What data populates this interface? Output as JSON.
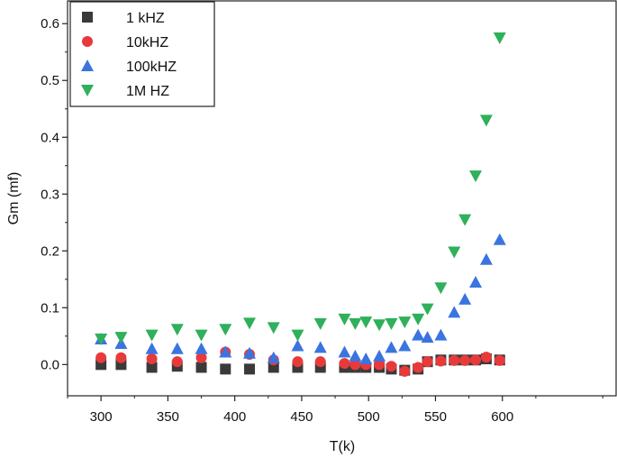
{
  "chart_data": {
    "type": "scatter",
    "title": "",
    "xlabel": "T(k)",
    "ylabel": "Gm (mf)",
    "xlim": [
      275,
      685
    ],
    "ylim": [
      -0.055,
      0.64
    ],
    "xticks": [
      "300",
      "350",
      "400",
      "450",
      "500",
      "550",
      "600"
    ],
    "yticks": [
      "0.0",
      "0.1",
      "0.2",
      "0.3",
      "0.4",
      "0.5",
      "0.6"
    ],
    "grid": false,
    "legend": "top-left",
    "series": [
      {
        "name": "1 kHZ",
        "marker": "square",
        "color": "#3a3a3a",
        "x": [
          300,
          315,
          338,
          357,
          375,
          393,
          411,
          429,
          447,
          464,
          482,
          490,
          498,
          508,
          517,
          527,
          537,
          544,
          554,
          564,
          572,
          580,
          588,
          598
        ],
        "y": [
          0.0,
          0.0,
          -0.005,
          -0.003,
          -0.005,
          -0.008,
          -0.008,
          -0.005,
          -0.005,
          -0.005,
          -0.005,
          -0.005,
          -0.005,
          -0.005,
          -0.008,
          -0.01,
          -0.008,
          0.005,
          0.008,
          0.008,
          0.008,
          0.008,
          0.01,
          0.008
        ]
      },
      {
        "name": "10kHZ",
        "marker": "circle",
        "color": "#e83a3a",
        "x": [
          300,
          315,
          338,
          357,
          375,
          393,
          411,
          429,
          447,
          464,
          482,
          490,
          498,
          508,
          517,
          527,
          537,
          544,
          554,
          564,
          572,
          580,
          588,
          598
        ],
        "y": [
          0.012,
          0.012,
          0.01,
          0.005,
          0.012,
          0.022,
          0.018,
          0.008,
          0.005,
          0.005,
          0.002,
          0.0,
          0.0,
          0.0,
          -0.003,
          -0.012,
          -0.005,
          0.005,
          0.006,
          0.007,
          0.007,
          0.008,
          0.013,
          0.007
        ]
      },
      {
        "name": "100kHZ",
        "marker": "triangle-up",
        "color": "#3a74e0",
        "x": [
          300,
          315,
          338,
          357,
          375,
          393,
          411,
          429,
          447,
          464,
          482,
          490,
          498,
          508,
          517,
          527,
          537,
          544,
          554,
          564,
          572,
          580,
          588,
          598
        ],
        "y": [
          0.045,
          0.037,
          0.028,
          0.028,
          0.028,
          0.022,
          0.02,
          0.012,
          0.033,
          0.03,
          0.022,
          0.015,
          0.01,
          0.015,
          0.03,
          0.033,
          0.052,
          0.048,
          0.052,
          0.092,
          0.115,
          0.145,
          0.185,
          0.22
        ]
      },
      {
        "name": "1M HZ",
        "marker": "triangle-down",
        "color": "#2fb05a",
        "x": [
          300,
          315,
          338,
          357,
          375,
          393,
          411,
          429,
          447,
          464,
          482,
          490,
          498,
          508,
          517,
          527,
          537,
          544,
          554,
          564,
          572,
          580,
          588,
          598
        ],
        "y": [
          0.045,
          0.048,
          0.052,
          0.062,
          0.052,
          0.062,
          0.073,
          0.065,
          0.052,
          0.072,
          0.08,
          0.072,
          0.075,
          0.07,
          0.072,
          0.075,
          0.08,
          0.098,
          0.135,
          0.198,
          0.255,
          0.332,
          0.43,
          0.575
        ]
      }
    ]
  }
}
